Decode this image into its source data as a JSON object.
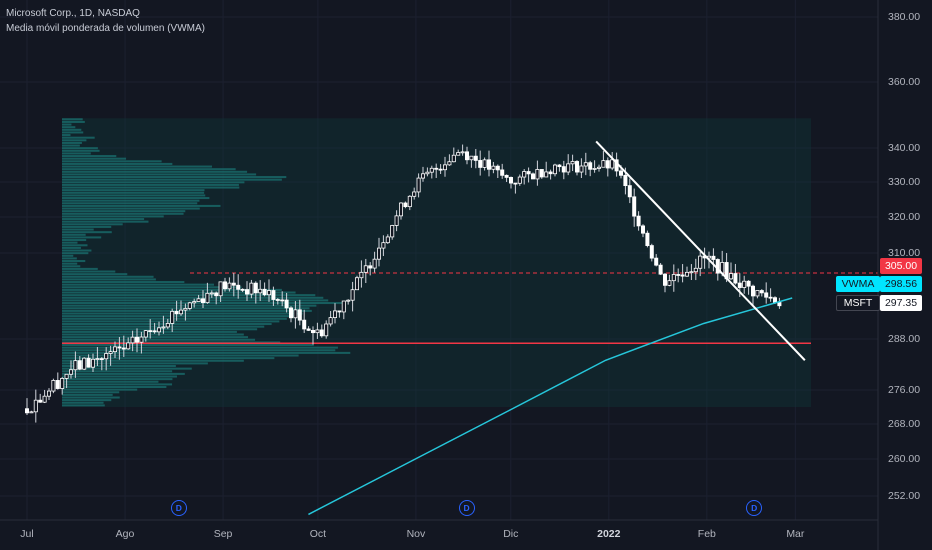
{
  "header": {
    "symbol_line": "Microsoft Corp., 1D, NASDAQ",
    "indicator_line": "Media móvil ponderada de volumen (VWMA)"
  },
  "price_tags": {
    "resistance": {
      "text": "305.00",
      "bg": "#f23645",
      "fg": "#ffffff"
    },
    "vwma": {
      "label": "VWMA",
      "value": "298.56",
      "bg": "#00e5ff",
      "fg": "#131722"
    },
    "symbol": {
      "label": "MSFT",
      "value": "297.35",
      "bg": "#ffffff",
      "fg": "#131722"
    }
  },
  "y_axis_labels": [
    "380.00",
    "360.00",
    "340.00",
    "330.00",
    "320.00",
    "310.00",
    "288.00",
    "276.00",
    "268.00",
    "260.00",
    "252.00"
  ],
  "x_axis_labels": [
    "Jul",
    "Ago",
    "Sep",
    "Oct",
    "Nov",
    "Dic",
    "2022",
    "Feb",
    "Mar"
  ],
  "dividend_markers": [
    {
      "date": "2021-08-18",
      "label": "D"
    },
    {
      "date": "2021-11-17",
      "label": "D"
    },
    {
      "date": "2022-02-16",
      "label": "D"
    }
  ],
  "colors": {
    "background": "#131722",
    "candle_up": "#ffffff",
    "candle_down": "#ffffff",
    "vwma": "#26c6da",
    "volume_profile": "#1e7f7f",
    "resistance_line": "#f23645",
    "support_line": "#f23645",
    "trendline": "#ffffff"
  },
  "chart_data": {
    "type": "candlestick",
    "symbol": "MSFT",
    "timeframe": "1D",
    "exchange": "NASDAQ",
    "x": [
      "2021-07-01",
      "2021-07-15",
      "2021-08-02",
      "2021-08-16",
      "2021-09-01",
      "2021-09-15",
      "2021-10-01",
      "2021-10-15",
      "2021-11-01",
      "2021-11-15",
      "2021-12-01",
      "2021-12-15",
      "2022-01-03",
      "2022-01-18",
      "2022-02-01",
      "2022-02-15",
      "2022-02-25"
    ],
    "close": [
      271.6,
      281.0,
      285.9,
      294.6,
      301.8,
      300.1,
      289.1,
      304.2,
      329.4,
      339.5,
      330.1,
      334.6,
      334.8,
      302.7,
      308.8,
      300.5,
      297.4
    ],
    "vwma_x": [
      "2021-09-28",
      "2021-10-29",
      "2021-11-30",
      "2021-12-31",
      "2022-01-31",
      "2022-02-28"
    ],
    "vwma": [
      248.0,
      259.0,
      271.0,
      283.0,
      292.0,
      298.56
    ],
    "resistance": 305.0,
    "support": 287.0,
    "trendline": {
      "from": [
        "2021-12-28",
        342.0
      ],
      "to": [
        "2022-03-04",
        283.0
      ]
    },
    "volume_profile_range": [
      272.0,
      349.0
    ],
    "y_ticks": [
      252,
      260,
      268,
      276,
      288,
      310,
      320,
      330,
      340,
      360,
      380
    ],
    "last_price": 297.35
  }
}
